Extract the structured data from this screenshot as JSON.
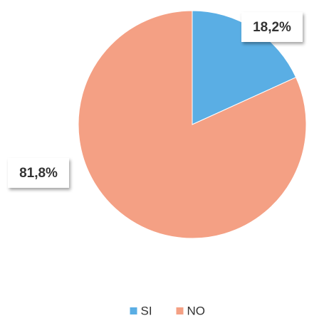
{
  "chart_data": {
    "type": "pie",
    "categories": [
      "SI",
      "NO"
    ],
    "values": [
      18.2,
      81.8
    ],
    "value_labels": [
      "18,2%",
      "81,8%"
    ],
    "colors": [
      "#5aaee4",
      "#f4a084"
    ],
    "legend": "bottom"
  }
}
